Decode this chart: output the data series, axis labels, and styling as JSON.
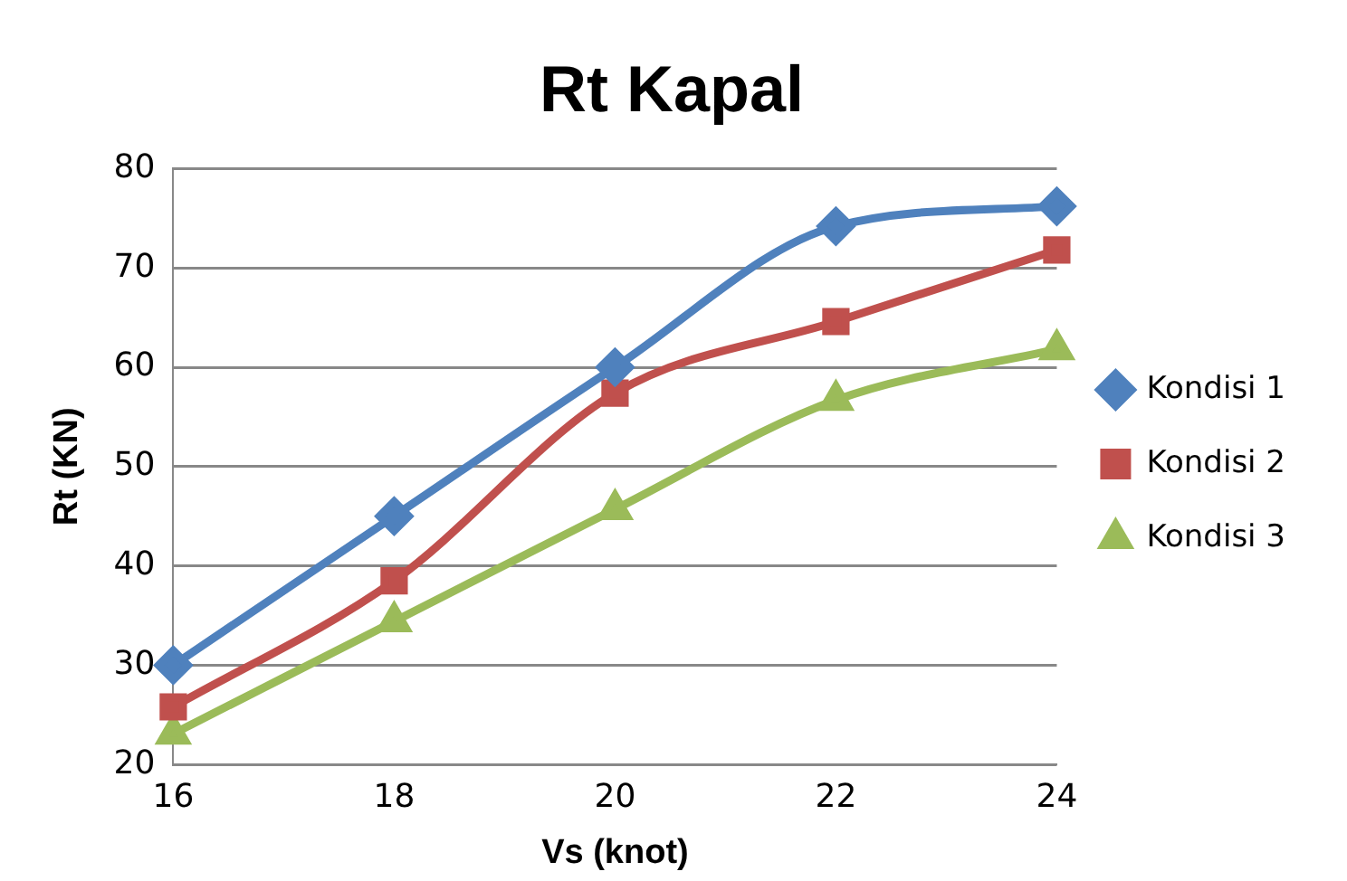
{
  "chart_data": {
    "type": "line",
    "title": "Rt Kapal",
    "xlabel": "Vs (knot)",
    "ylabel": "Rt (KN)",
    "categories": [
      "16",
      "18",
      "20",
      "22",
      "24"
    ],
    "series": [
      {
        "name": "Kondisi 1",
        "color": "#4f81bd",
        "marker": "diamond",
        "values": [
          30,
          45,
          60,
          74.2,
          76.2
        ]
      },
      {
        "name": "Kondisi 2",
        "color": "#c0504d",
        "marker": "square",
        "values": [
          25.8,
          38.5,
          57.4,
          64.6,
          71.8
        ]
      },
      {
        "name": "Kondisi 3",
        "color": "#9bbb59",
        "marker": "triangle",
        "values": [
          23.1,
          34.4,
          45.7,
          56.7,
          61.8
        ]
      }
    ],
    "ylim": [
      20,
      80
    ],
    "yticks": [
      20,
      30,
      40,
      50,
      60,
      70,
      80
    ],
    "grid": "y",
    "legend": "right",
    "line_style": "solid"
  }
}
